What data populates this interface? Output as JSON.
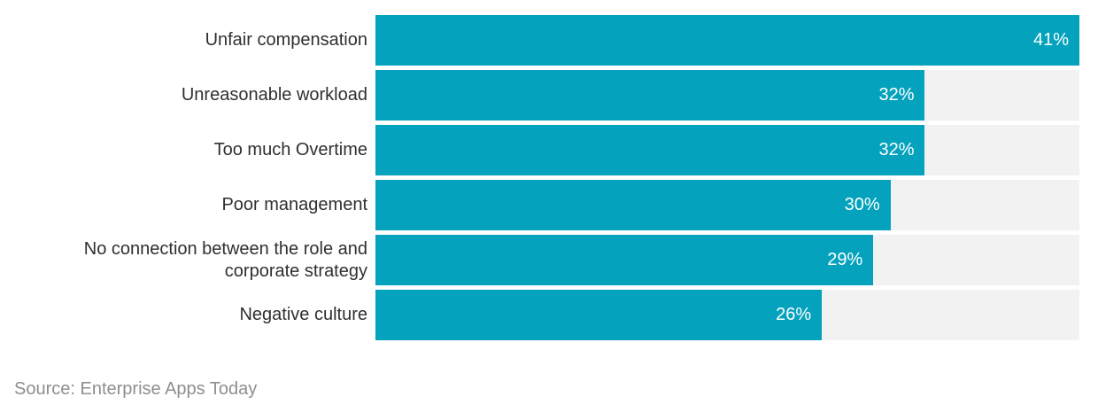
{
  "chart_data": {
    "type": "bar",
    "orientation": "horizontal",
    "categories": [
      "Unfair compensation",
      "Unreasonable workload",
      "Too much Overtime",
      "Poor management",
      "No connection between the role and corporate strategy",
      "Negative culture"
    ],
    "values": [
      41,
      32,
      32,
      30,
      29,
      26
    ],
    "value_labels": [
      "41%",
      "32%",
      "32%",
      "30%",
      "29%",
      "26%"
    ],
    "title": "",
    "xlabel": "",
    "ylabel": "",
    "xlim": [
      0,
      41
    ],
    "grid": false,
    "legend": false,
    "bar_color": "#04a2bc",
    "track_color": "#f2f2f2",
    "category_label_color": "#2f2f2f",
    "value_label_color": "#ffffff"
  },
  "footer": {
    "source": "Source: Enterprise Apps Today",
    "color": "#8e8e8e"
  }
}
